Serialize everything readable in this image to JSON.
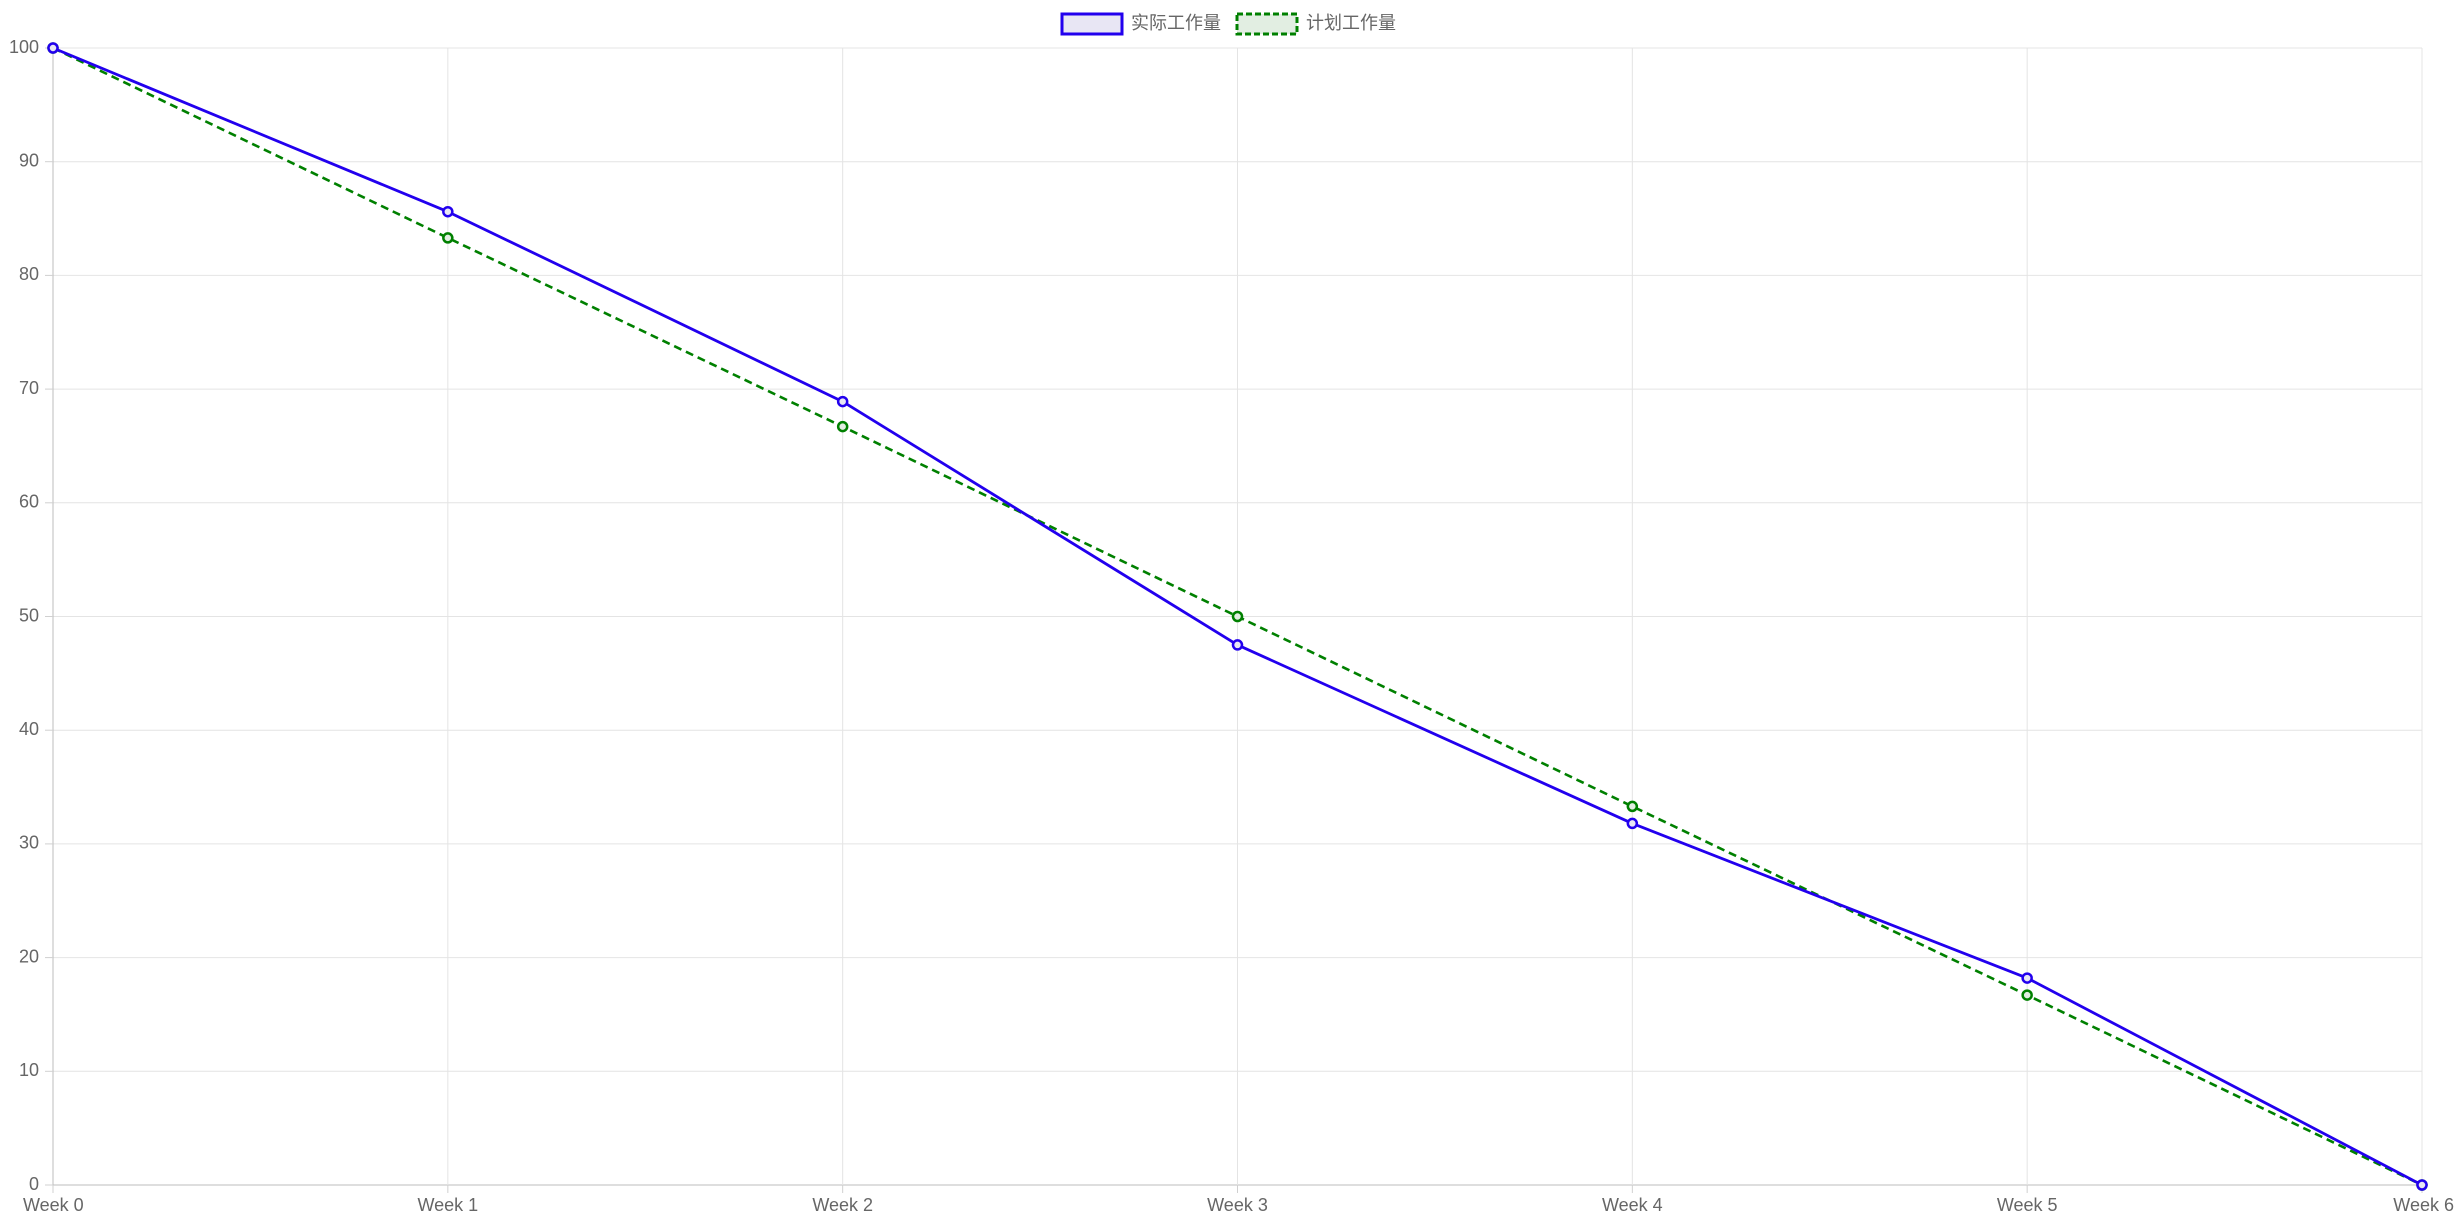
{
  "chart_data": {
    "type": "line",
    "title": "",
    "xlabel": "",
    "ylabel": "",
    "categories": [
      "Week 0",
      "Week 1",
      "Week 2",
      "Week 3",
      "Week 4",
      "Week 5",
      "Week 6"
    ],
    "y_ticks": [
      0,
      10,
      20,
      30,
      40,
      50,
      60,
      70,
      80,
      90,
      100
    ],
    "ylim": [
      0,
      100
    ],
    "grid": true,
    "legend_position": "top-center",
    "series": [
      {
        "name": "实际工作量",
        "values": [
          100,
          85.6,
          68.9,
          47.5,
          31.8,
          18.2,
          0
        ],
        "color": "#2200ee",
        "line_style": "solid",
        "fill": "#e8e6f4"
      },
      {
        "name": "计划工作量",
        "values": [
          100,
          83.3,
          66.7,
          50,
          33.3,
          16.7,
          0
        ],
        "color": "#008000",
        "line_style": "dashed",
        "fill": "#e2eee2"
      }
    ]
  }
}
